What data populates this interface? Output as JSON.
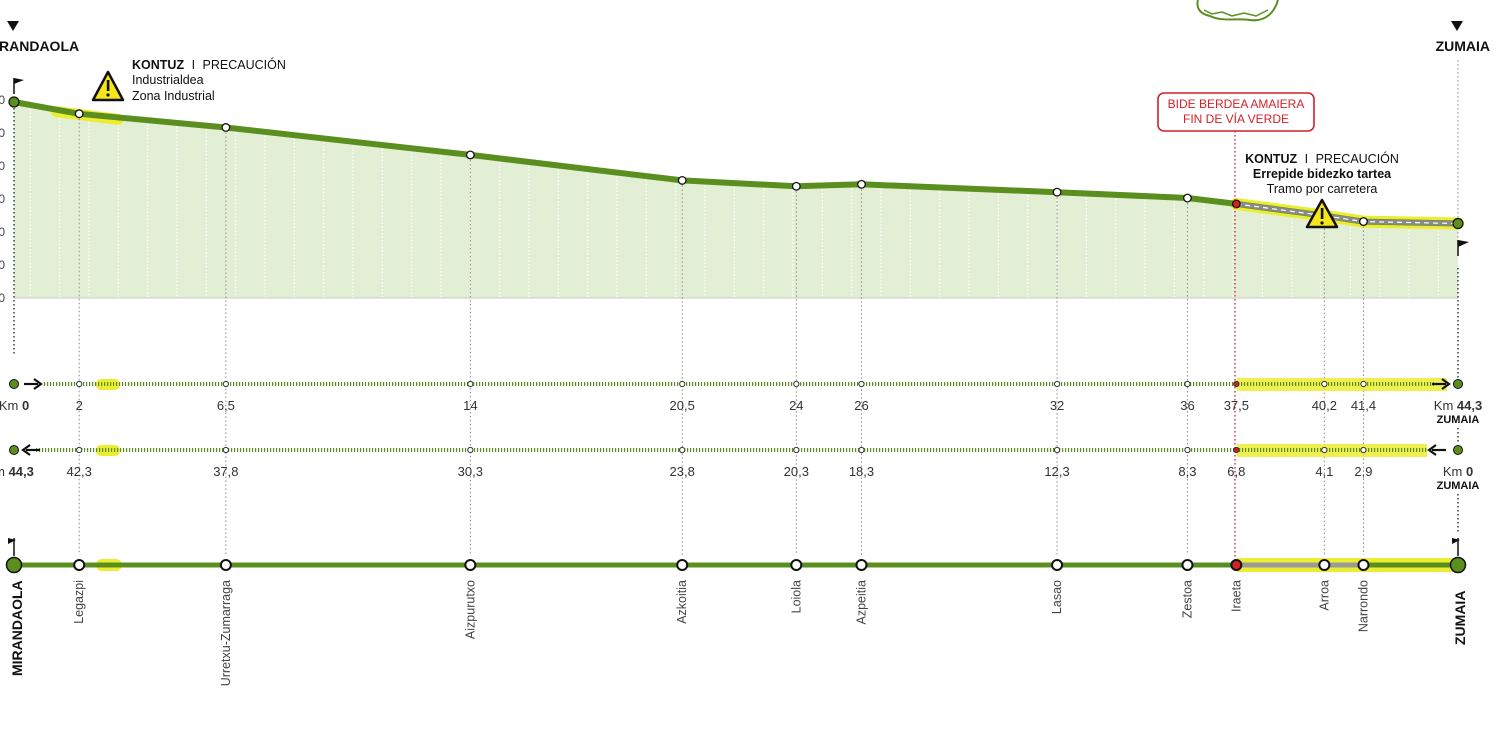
{
  "endpoints": {
    "start": {
      "name": "RANDAOLA",
      "vertical_name": "MIRANDAOLA"
    },
    "end": {
      "name": "ZUMAIA",
      "vertical_name": "ZUMAIA"
    }
  },
  "warnings": {
    "industrial": {
      "kontuz": "KONTUZ",
      "sep": "I",
      "precaucion": "PRECAUCIÓN",
      "line1": "Industrialdea",
      "line2": "Zona Industrial"
    },
    "road": {
      "kontuz": "KONTUZ",
      "sep": "I",
      "precaucion": "PRECAUCIÓN",
      "line1": "Errepide bidezko tartea",
      "line2": "Tramo por carretera"
    }
  },
  "end_greenway_label": {
    "line1": "BIDE BERDEA AMAIERA",
    "line2": "FIN DE VÍA VERDE"
  },
  "forward_km": {
    "start_prefix": "Km",
    "start_value": "0",
    "end_prefix": "Km",
    "end_value": "44,3",
    "end_place": "ZUMAIA",
    "labels": [
      "2",
      "6,5",
      "14",
      "20,5",
      "24",
      "26",
      "32",
      "36",
      "37,5",
      "40,2",
      "41,4"
    ]
  },
  "reverse_km": {
    "start_prefix": "m",
    "start_value": "44,3",
    "end_prefix": "Km",
    "end_value": "0",
    "end_place": "ZUMAIA",
    "labels": [
      "42,3",
      "37,8",
      "30,3",
      "23,8",
      "20,3",
      "18,3",
      "12,3",
      "8,3",
      "6,8",
      "4,1",
      "2,9"
    ]
  },
  "stops": [
    "Legazpi",
    "Urretxu-Zumarraga",
    "Aizpurutxo",
    "Azkoitia",
    "Loiola",
    "Azpeitia",
    "Lasao",
    "Zestoa",
    "Iraeta",
    "Arroa",
    "Narrondo"
  ],
  "y_ticks": [
    "0",
    "0",
    "0",
    "0",
    "0",
    "0",
    "0"
  ],
  "colors": {
    "route_green": "#5a8f1f",
    "fill_green": "#e3efd4",
    "highlight_yellow": "#ecec30",
    "warning_red": "#d4202a",
    "road_grey": "#9a9a9a",
    "dotted_grey": "#8a8a8a"
  },
  "chart_data": {
    "type": "area",
    "title": "",
    "xlabel": "",
    "ylabel": "",
    "x_unit": "km",
    "x": [
      0,
      2,
      6.5,
      14,
      20.5,
      24,
      26,
      32,
      36,
      37.5,
      40.2,
      41.4,
      44.3
    ],
    "series": [
      {
        "values": [
          100,
          94,
          87,
          73,
          60,
          57,
          58,
          54,
          51,
          48,
          42,
          39,
          38
        ]
      }
    ],
    "notes": "Elevation profile; axis tick values are cropped (only trailing 0 visible), so y values are relative (0-100) estimates read from the drawing."
  }
}
